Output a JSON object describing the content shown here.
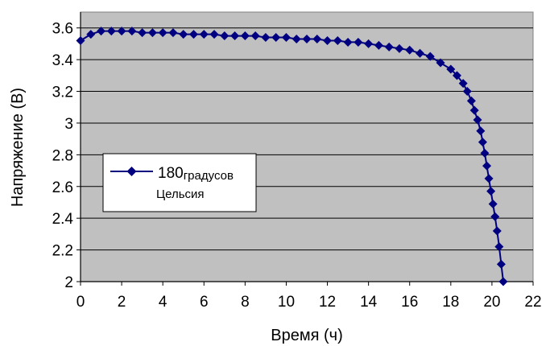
{
  "chart_data": {
    "type": "line",
    "title": "",
    "xlabel": "Время (ч)",
    "ylabel": "Напряжение (В)",
    "xlim": [
      0,
      22
    ],
    "ylim": [
      2,
      3.7
    ],
    "x_ticks": [
      "0",
      "2",
      "4",
      "6",
      "8",
      "10",
      "12",
      "14",
      "16",
      "18",
      "20",
      "22"
    ],
    "y_ticks": [
      "2",
      "2.2",
      "2.4",
      "2.6",
      "2.8",
      "3",
      "3.2",
      "3.4",
      "3.6"
    ],
    "grid": "horizontal",
    "legend_position": "center-left",
    "plot_background": "#c0c0c0",
    "series_color": "#000080",
    "series": [
      {
        "name_main": "180",
        "name_sub1": "градусов",
        "name_sub2": "Цельсия",
        "x": [
          0,
          0.5,
          1.0,
          1.5,
          2.0,
          2.5,
          3.0,
          3.5,
          4.0,
          4.5,
          5.0,
          5.5,
          6.0,
          6.5,
          7.0,
          7.5,
          8.0,
          8.5,
          9.0,
          9.5,
          10.0,
          10.5,
          11.0,
          11.5,
          12.0,
          12.5,
          13.0,
          13.5,
          14.0,
          14.5,
          15.0,
          15.5,
          16.0,
          16.5,
          17.0,
          17.5,
          18.0,
          18.3,
          18.6,
          18.8,
          19.0,
          19.15,
          19.3,
          19.45,
          19.55,
          19.65,
          19.75,
          19.85,
          19.95,
          20.05,
          20.15,
          20.25,
          20.35,
          20.45,
          20.55
        ],
        "y": [
          3.52,
          3.56,
          3.58,
          3.58,
          3.58,
          3.58,
          3.57,
          3.57,
          3.57,
          3.57,
          3.56,
          3.56,
          3.56,
          3.56,
          3.55,
          3.55,
          3.55,
          3.55,
          3.54,
          3.54,
          3.54,
          3.53,
          3.53,
          3.53,
          3.52,
          3.52,
          3.51,
          3.51,
          3.5,
          3.49,
          3.48,
          3.47,
          3.46,
          3.44,
          3.42,
          3.38,
          3.34,
          3.3,
          3.25,
          3.2,
          3.14,
          3.08,
          3.02,
          2.95,
          2.88,
          2.81,
          2.73,
          2.65,
          2.57,
          2.49,
          2.41,
          2.32,
          2.22,
          2.11,
          2.0
        ]
      }
    ]
  }
}
